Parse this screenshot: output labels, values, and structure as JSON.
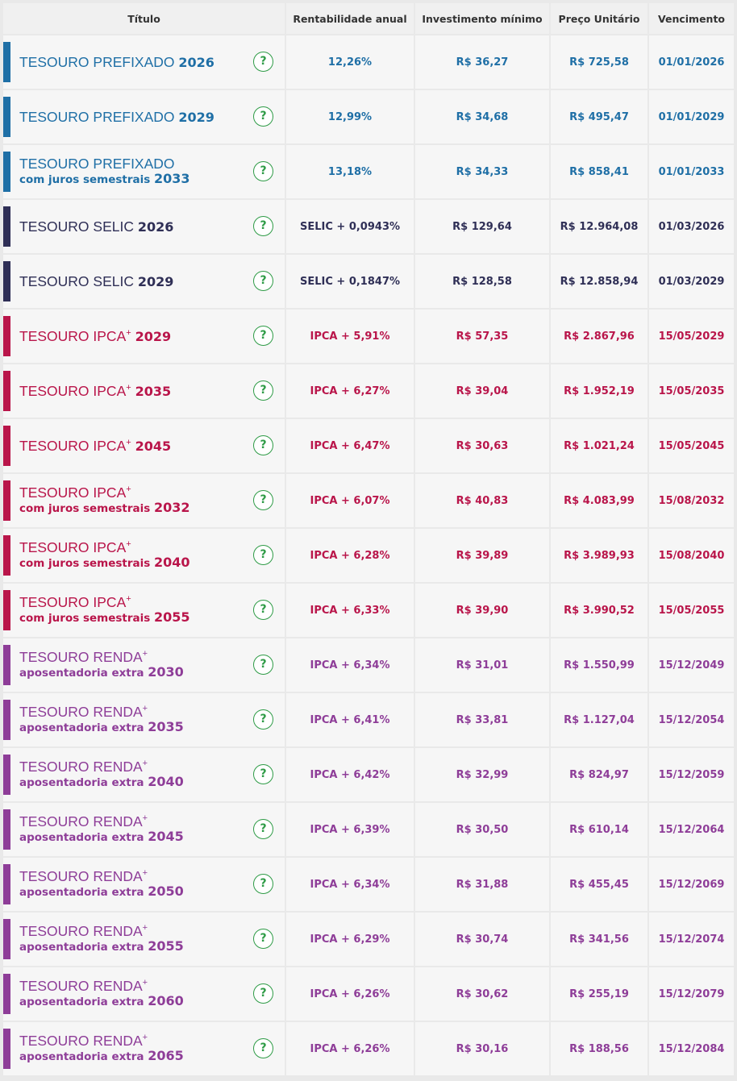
{
  "colors": {
    "prefixado": "#1f6fa6",
    "selic": "#2f2f56",
    "ipca": "#b9154a",
    "renda": "#8e3d98",
    "help": "#2e9b46"
  },
  "header": {
    "titulo": "Título",
    "rentabilidade": "Rentabilidade anual",
    "investimento": "Investimento mínimo",
    "preco": "Preço Unitário",
    "vencimento": "Vencimento"
  },
  "help_icon": "?",
  "rows": [
    {
      "group": "prefixado",
      "name": "TESOURO PREFIXADO",
      "plus": "",
      "sub": "",
      "year": "2026",
      "rent": "12,26%",
      "min": "R$ 36,27",
      "price": "R$ 725,58",
      "venc": "01/01/2026"
    },
    {
      "group": "prefixado",
      "name": "TESOURO PREFIXADO",
      "plus": "",
      "sub": "",
      "year": "2029",
      "rent": "12,99%",
      "min": "R$ 34,68",
      "price": "R$ 495,47",
      "venc": "01/01/2029"
    },
    {
      "group": "prefixado",
      "name": "TESOURO PREFIXADO",
      "plus": "",
      "sub": "com juros semestrais",
      "year": "2033",
      "rent": "13,18%",
      "min": "R$ 34,33",
      "price": "R$ 858,41",
      "venc": "01/01/2033"
    },
    {
      "group": "selic",
      "name": "TESOURO SELIC",
      "plus": "",
      "sub": "",
      "year": "2026",
      "rent": "SELIC + 0,0943%",
      "min": "R$ 129,64",
      "price": "R$ 12.964,08",
      "venc": "01/03/2026"
    },
    {
      "group": "selic",
      "name": "TESOURO SELIC",
      "plus": "",
      "sub": "",
      "year": "2029",
      "rent": "SELIC + 0,1847%",
      "min": "R$ 128,58",
      "price": "R$ 12.858,94",
      "venc": "01/03/2029"
    },
    {
      "group": "ipca",
      "name": "TESOURO IPCA",
      "plus": "+",
      "sub": "",
      "year": "2029",
      "rent": "IPCA + 5,91%",
      "min": "R$ 57,35",
      "price": "R$ 2.867,96",
      "venc": "15/05/2029"
    },
    {
      "group": "ipca",
      "name": "TESOURO IPCA",
      "plus": "+",
      "sub": "",
      "year": "2035",
      "rent": "IPCA + 6,27%",
      "min": "R$ 39,04",
      "price": "R$ 1.952,19",
      "venc": "15/05/2035"
    },
    {
      "group": "ipca",
      "name": "TESOURO IPCA",
      "plus": "+",
      "sub": "",
      "year": "2045",
      "rent": "IPCA + 6,47%",
      "min": "R$ 30,63",
      "price": "R$ 1.021,24",
      "venc": "15/05/2045"
    },
    {
      "group": "ipca",
      "name": "TESOURO IPCA",
      "plus": "+",
      "sub": "com juros semestrais",
      "year": "2032",
      "rent": "IPCA + 6,07%",
      "min": "R$ 40,83",
      "price": "R$ 4.083,99",
      "venc": "15/08/2032"
    },
    {
      "group": "ipca",
      "name": "TESOURO IPCA",
      "plus": "+",
      "sub": "com juros semestrais",
      "year": "2040",
      "rent": "IPCA + 6,28%",
      "min": "R$ 39,89",
      "price": "R$ 3.989,93",
      "venc": "15/08/2040"
    },
    {
      "group": "ipca",
      "name": "TESOURO IPCA",
      "plus": "+",
      "sub": "com juros semestrais",
      "year": "2055",
      "rent": "IPCA + 6,33%",
      "min": "R$ 39,90",
      "price": "R$ 3.990,52",
      "venc": "15/05/2055"
    },
    {
      "group": "renda",
      "name": "TESOURO RENDA",
      "plus": "+",
      "sub": "aposentadoria extra",
      "year": "2030",
      "rent": "IPCA + 6,34%",
      "min": "R$ 31,01",
      "price": "R$ 1.550,99",
      "venc": "15/12/2049"
    },
    {
      "group": "renda",
      "name": "TESOURO RENDA",
      "plus": "+",
      "sub": "aposentadoria extra",
      "year": "2035",
      "rent": "IPCA + 6,41%",
      "min": "R$ 33,81",
      "price": "R$ 1.127,04",
      "venc": "15/12/2054"
    },
    {
      "group": "renda",
      "name": "TESOURO RENDA",
      "plus": "+",
      "sub": "aposentadoria extra",
      "year": "2040",
      "rent": "IPCA + 6,42%",
      "min": "R$ 32,99",
      "price": "R$ 824,97",
      "venc": "15/12/2059"
    },
    {
      "group": "renda",
      "name": "TESOURO RENDA",
      "plus": "+",
      "sub": "aposentadoria extra",
      "year": "2045",
      "rent": "IPCA + 6,39%",
      "min": "R$ 30,50",
      "price": "R$ 610,14",
      "venc": "15/12/2064"
    },
    {
      "group": "renda",
      "name": "TESOURO RENDA",
      "plus": "+",
      "sub": "aposentadoria extra",
      "year": "2050",
      "rent": "IPCA + 6,34%",
      "min": "R$ 31,88",
      "price": "R$ 455,45",
      "venc": "15/12/2069"
    },
    {
      "group": "renda",
      "name": "TESOURO RENDA",
      "plus": "+",
      "sub": "aposentadoria extra",
      "year": "2055",
      "rent": "IPCA + 6,29%",
      "min": "R$ 30,74",
      "price": "R$ 341,56",
      "venc": "15/12/2074"
    },
    {
      "group": "renda",
      "name": "TESOURO RENDA",
      "plus": "+",
      "sub": "aposentadoria extra",
      "year": "2060",
      "rent": "IPCA + 6,26%",
      "min": "R$ 30,62",
      "price": "R$ 255,19",
      "venc": "15/12/2079"
    },
    {
      "group": "renda",
      "name": "TESOURO RENDA",
      "plus": "+",
      "sub": "aposentadoria extra",
      "year": "2065",
      "rent": "IPCA + 6,26%",
      "min": "R$ 30,16",
      "price": "R$ 188,56",
      "venc": "15/12/2084"
    }
  ]
}
